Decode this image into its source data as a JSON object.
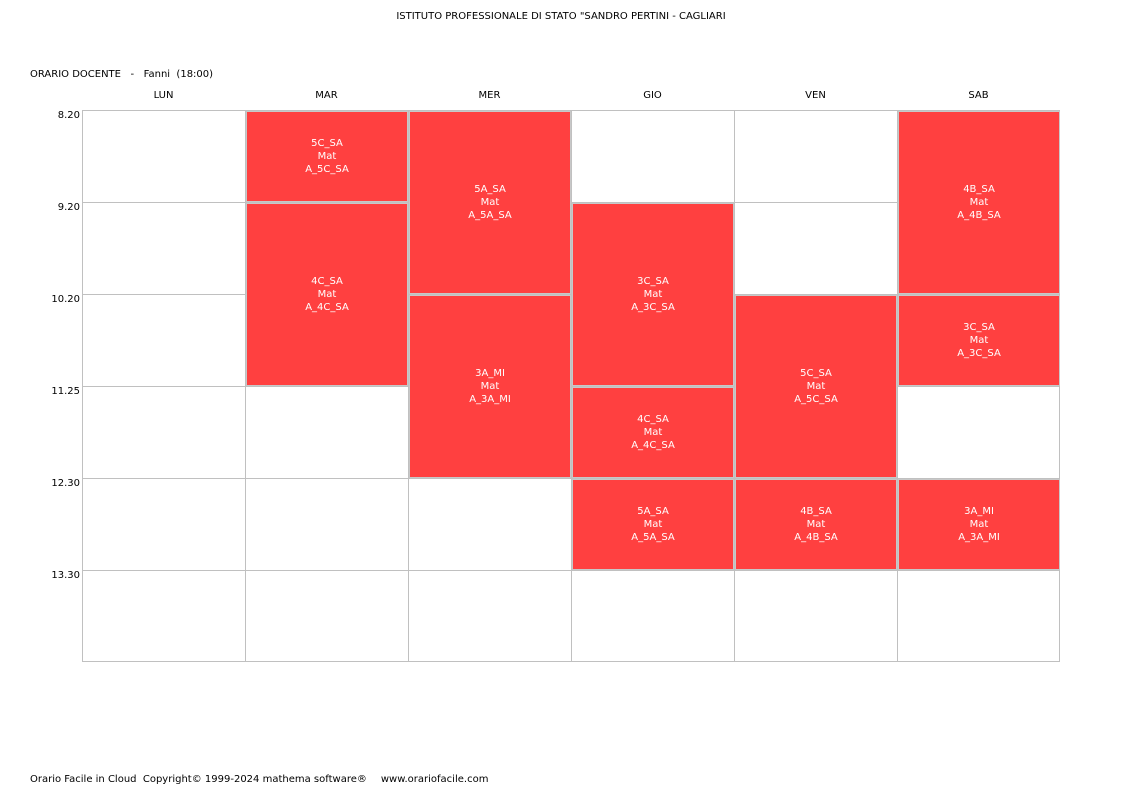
{
  "header": {
    "school_title": "ISTITUTO PROFESSIONALE DI STATO \"SANDRO PERTINI - CAGLIARI",
    "schedule_label": "ORARIO DOCENTE   -   Fanni  (18:00)"
  },
  "days": [
    "LUN",
    "MAR",
    "MER",
    "GIO",
    "VEN",
    "SAB"
  ],
  "times": [
    "8.20",
    "9.20",
    "10.20",
    "11.25",
    "12.30",
    "13.30"
  ],
  "lessons": [
    {
      "day": "MAR",
      "start": "8.20",
      "hours": 1,
      "class": "5C_SA",
      "subject": "Mat",
      "room": "A_5C_SA"
    },
    {
      "day": "MAR",
      "start": "9.20",
      "hours": 2,
      "class": "4C_SA",
      "subject": "Mat",
      "room": "A_4C_SA"
    },
    {
      "day": "MER",
      "start": "8.20",
      "hours": 2,
      "class": "5A_SA",
      "subject": "Mat",
      "room": "A_5A_SA"
    },
    {
      "day": "MER",
      "start": "10.20",
      "hours": 2,
      "class": "3A_MI",
      "subject": "Mat",
      "room": "A_3A_MI"
    },
    {
      "day": "GIO",
      "start": "9.20",
      "hours": 2,
      "class": "3C_SA",
      "subject": "Mat",
      "room": "A_3C_SA"
    },
    {
      "day": "GIO",
      "start": "11.25",
      "hours": 1,
      "class": "4C_SA",
      "subject": "Mat",
      "room": "A_4C_SA"
    },
    {
      "day": "GIO",
      "start": "12.30",
      "hours": 1,
      "class": "5A_SA",
      "subject": "Mat",
      "room": "A_5A_SA"
    },
    {
      "day": "VEN",
      "start": "10.20",
      "hours": 2,
      "class": "5C_SA",
      "subject": "Mat",
      "room": "A_5C_SA"
    },
    {
      "day": "VEN",
      "start": "12.30",
      "hours": 1,
      "class": "4B_SA",
      "subject": "Mat",
      "room": "A_4B_SA"
    },
    {
      "day": "SAB",
      "start": "8.20",
      "hours": 2,
      "class": "4B_SA",
      "subject": "Mat",
      "room": "A_4B_SA"
    },
    {
      "day": "SAB",
      "start": "10.20",
      "hours": 1,
      "class": "3C_SA",
      "subject": "Mat",
      "room": "A_3C_SA"
    },
    {
      "day": "SAB",
      "start": "12.30",
      "hours": 1,
      "class": "3A_MI",
      "subject": "Mat",
      "room": "A_3A_MI"
    }
  ],
  "colors": {
    "lesson_fill": "#ff4040",
    "grid_line": "#c0c0c0"
  },
  "footer": {
    "copyright": "Orario Facile in Cloud  Copyright© 1999-2024 mathema software®",
    "url": "www.orariofacile.com"
  }
}
